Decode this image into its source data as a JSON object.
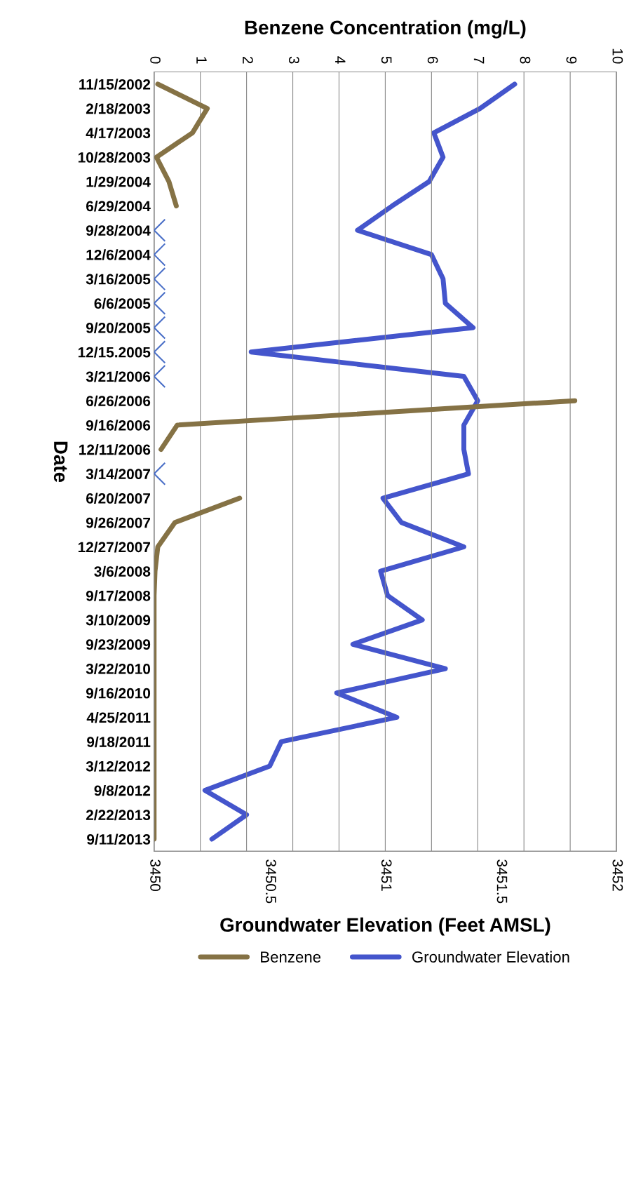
{
  "chart_data": {
    "type": "line",
    "orientation": "horizontal",
    "xlabel": "Groundwater Elevation (Feet AMSL)",
    "x2label": "Benzene Concentration (mg/L)",
    "ylabel": "Date",
    "categories": [
      "11/15/2002",
      "2/18/2003",
      "4/17/2003",
      "10/28/2003",
      "1/29/2004",
      "6/29/2004",
      "9/28/2004",
      "12/6/2004",
      "3/16/2005",
      "6/6/2005",
      "9/20/2005",
      "12/15.2005",
      "3/21/2006",
      "6/26/2006",
      "9/16/2006",
      "12/11/2006",
      "3/14/2007",
      "6/20/2007",
      "9/26/2007",
      "12/27/2007",
      "3/6/2008",
      "9/17/2008",
      "3/10/2009",
      "9/23/2009",
      "3/22/2010",
      "9/16/2010",
      "4/25/2011",
      "9/18/2011",
      "3/12/2012",
      "9/8/2012",
      "2/22/2013",
      "9/11/2013"
    ],
    "series": [
      {
        "name": "Benzene",
        "type": "line",
        "axis": "x2",
        "color": "#857245",
        "values": [
          0.08,
          1.15,
          0.83,
          0.05,
          0.32,
          0.48,
          null,
          null,
          null,
          null,
          null,
          null,
          null,
          9.1,
          0.5,
          0.15,
          null,
          1.85,
          0.45,
          0.08,
          0.02,
          0,
          0,
          0,
          0,
          0,
          0,
          0,
          0,
          0,
          0,
          0
        ]
      },
      {
        "name": "Groundwater Elevation",
        "color": "#4455cc",
        "values": [
          3451.56,
          3451.41,
          3451.21,
          3451.25,
          3451.19,
          3451.03,
          3450.88,
          3451.2,
          3451.25,
          3451.26,
          3451.38,
          3450.42,
          3451.34,
          3451.4,
          3451.34,
          3451.34,
          3451.36,
          3450.99,
          3451.07,
          3451.34,
          3450.98,
          3451.01,
          3451.16,
          3450.86,
          3451.26,
          3450.79,
          3451.05,
          3450.55,
          3450.5,
          3450.22,
          3450.4,
          3450.25
        ]
      },
      {
        "type": "scatter",
        "axis": "x2",
        "marker": "cross",
        "color": "#4a6fc7",
        "values": [
          null,
          null,
          null,
          null,
          null,
          null,
          0,
          0,
          0,
          0,
          0,
          0,
          0,
          null,
          null,
          null,
          0,
          null,
          null,
          null,
          null,
          null,
          null,
          null,
          null,
          null,
          null,
          null,
          null,
          null,
          null,
          null
        ]
      }
    ],
    "xlim": [
      3450,
      3452
    ],
    "xticks": [
      3450,
      3450.5,
      3451,
      3451.5,
      3452
    ],
    "x2lim": [
      0,
      10
    ],
    "x2ticks": [
      0,
      1,
      2,
      3,
      4,
      5,
      6,
      7,
      8,
      9,
      10
    ],
    "grid": "x2",
    "legend": "bottom"
  }
}
